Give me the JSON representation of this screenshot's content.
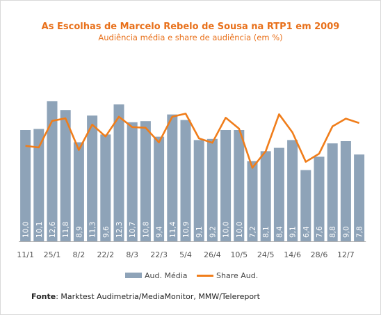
{
  "chart_data": {
    "type": "bar",
    "title": "As Escolhas de Marcelo Rebelo de Sousa na RTP1 em 2009",
    "subtitle": "Audiência média e share de audiência (em %)",
    "x_ticks": [
      "11/1",
      "25/1",
      "8/2",
      "22/2",
      "8/3",
      "22/3",
      "5/4",
      "26/4",
      "10/5",
      "24/5",
      "14/6",
      "28/6",
      "12/7"
    ],
    "series": [
      {
        "name": "Aud. Média",
        "kind": "bar",
        "color": "#8ea3b8",
        "values": [
          10.0,
          10.1,
          12.6,
          11.8,
          8.9,
          11.3,
          9.6,
          12.3,
          10.7,
          10.8,
          9.4,
          11.4,
          10.9,
          9.1,
          9.2,
          10.0,
          10.0,
          7.2,
          8.1,
          8.4,
          9.1,
          6.4,
          7.6,
          8.8,
          9.0,
          7.8
        ],
        "labels": [
          "10,0",
          "10,1",
          "12,6",
          "11,8",
          "8,9",
          "11,3",
          "9,6",
          "12,3",
          "10,7",
          "10,8",
          "9,4",
          "11,4",
          "10,9",
          "9,1",
          "9,2",
          "10,0",
          "10,0",
          "7,2",
          "8,1",
          "8,4",
          "9,1",
          "6,4",
          "7,6",
          "8,8",
          "9,0",
          "7,8"
        ]
      },
      {
        "name": "Share Aud.",
        "kind": "line",
        "color": "#f07d1a",
        "values": [
          30.5,
          30.0,
          38.5,
          39.3,
          29.2,
          37.3,
          33.5,
          39.8,
          36.5,
          36.3,
          31.6,
          39.8,
          40.8,
          32.9,
          31.5,
          39.5,
          36.0,
          23.5,
          28.8,
          40.6,
          34.8,
          25.4,
          28.0,
          36.7,
          39.2,
          37.8
        ]
      }
    ],
    "ylim": [
      0,
      18
    ],
    "share_ylim": [
      0,
      64
    ],
    "legend": "bottom",
    "grid": false
  },
  "source": {
    "label": "Fonte",
    "text": ": Marktest Audimetria/MediaMonitor, MMW/Telereport"
  }
}
